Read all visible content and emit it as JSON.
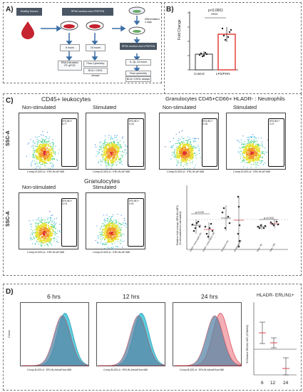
{
  "panels": {
    "a": "A)",
    "b": "B)",
    "c": "C)",
    "d": "D)"
  },
  "panel_a": {
    "donor": "Healthy Donors",
    "medium": "RPMI medium and LPS/PGN",
    "h6": "6 hours",
    "h24": "24 hours",
    "rna": "RNA Extraction",
    "rt": "RT-qPCR",
    "flow": "Flow Cytometry",
    "bca": "BCA / CHOL assays",
    "diff": "Differentiation 4 days",
    "medium2": "RPMI medium and LPS/PGN",
    "cells": "IL-1β, 24 hours",
    "flow2": "Flow cytometry",
    "bca2": "BCA / CHOL assays"
  },
  "panel_b": {
    "pvalue": "p<0.0001",
    "stars": "****",
    "ylabel": "Fold Change",
    "categories": [
      "Control",
      "LPS/PGN"
    ]
  },
  "panel_c": {
    "title_left": "CD45+ leukocytes",
    "title_right": "Granulocytes CD45+CD66+ HLADR- : Neutrophils",
    "title_bottom": "Granulocytes",
    "nonstim": "Non-stimulated",
    "stim": "Stimulated",
    "ssc": "SSC-A",
    "xaxis": "Comp-B-525-A : ERLIN-AF488",
    "gates": [
      {
        "label": "ERLIN1+",
        "value": "6.77"
      },
      {
        "label": "ERLIN1+",
        "value": "6.34"
      },
      {
        "label": "ERLIN1+",
        "value": "3.28"
      },
      {
        "label": "ERLIN1+",
        "value": "9.27"
      },
      {
        "label": "ERLIN1+",
        "value": "12.8"
      },
      {
        "label": "ERLIN1+",
        "value": "5.91"
      }
    ],
    "scatter_ylabel": "Relative fold change (ERLIN1-MFI)",
    "scatter_ylabel2": "(% stimulated/non-stimulated)",
    "p1": "p=0.09",
    "p2": "p=0.003",
    "cats": [
      "CD45+ Leukocytes NS",
      "CD45+ Leukocytes 24h",
      "Gr.Neutro NS",
      "Gr.Neutro 24h",
      "Gran. NS",
      "Gran. 24h"
    ]
  },
  "panel_d": {
    "h6": "6 hrs",
    "h12": "12 hrs",
    "h24": "24 hrs",
    "count": "Count",
    "xaxis": "Comp-B-525-A : ERLIN-AlexaFluor488",
    "title": "HLADR- ERLIN1+",
    "ylabel": "% Relative ERLIN1 MFI (STIM/NS)",
    "xticks": [
      "6",
      "12",
      "24"
    ]
  },
  "colors": {
    "red": "#d9333f",
    "cyan": "#3fc4d8",
    "steel": "#5a86a6",
    "pink": "#f2a0a8"
  }
}
